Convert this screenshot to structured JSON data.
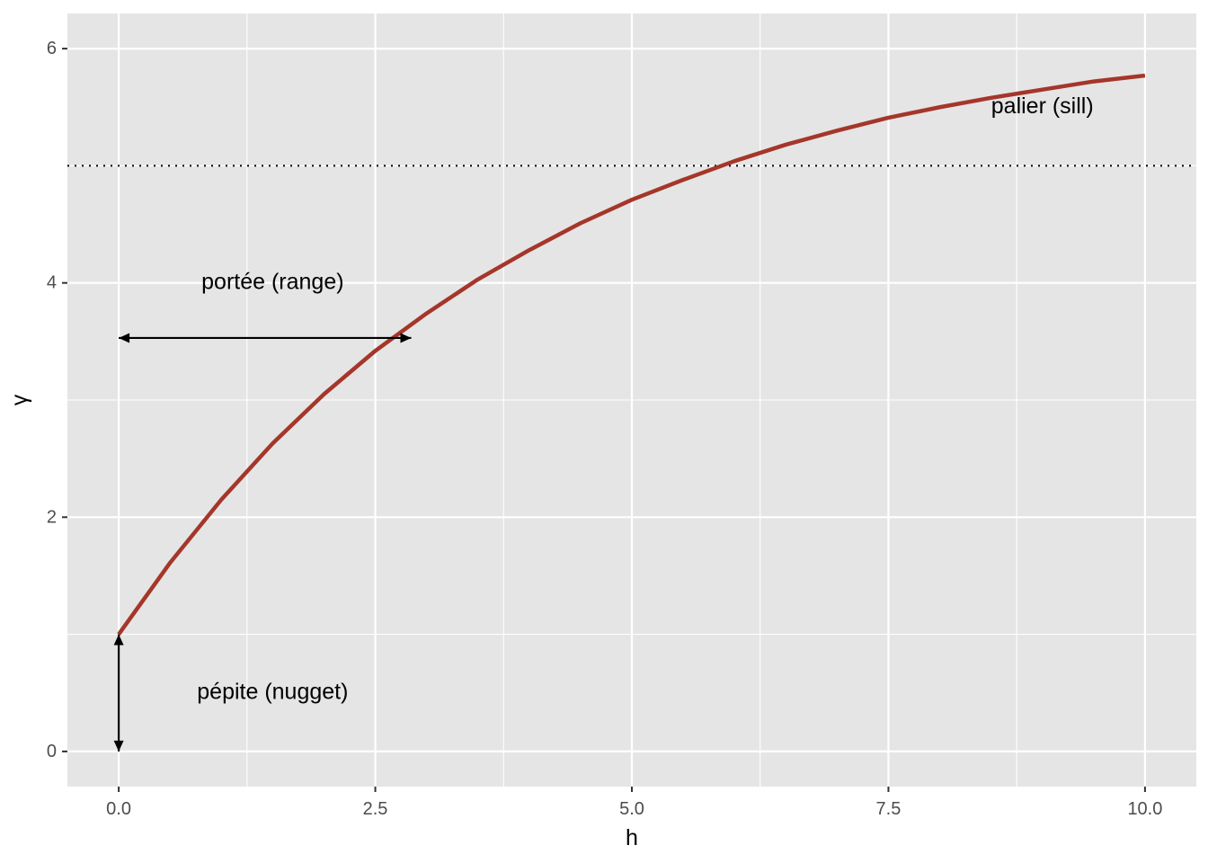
{
  "chart_data": {
    "type": "line",
    "title": "",
    "xlabel": "h",
    "ylabel": "γ",
    "xlim": [
      -0.5,
      10.5
    ],
    "ylim": [
      -0.3,
      6.3
    ],
    "x_ticks": [
      0,
      2.5,
      5,
      7.5,
      10
    ],
    "x_tick_labels": [
      "0.0",
      "2.5",
      "5.0",
      "7.5",
      "10.0"
    ],
    "y_ticks": [
      0,
      2,
      4,
      6
    ],
    "y_tick_labels": [
      "0",
      "2",
      "4",
      "6"
    ],
    "grid": true,
    "legend": "none",
    "series": [
      {
        "x": [
          0,
          0.5,
          1,
          1.5,
          2,
          2.5,
          3,
          3.5,
          4,
          4.5,
          5,
          5.5,
          6,
          6.5,
          7,
          7.5,
          8,
          8.5,
          9,
          9.5,
          10
        ],
        "values": [
          1.0,
          1.61,
          2.15,
          2.63,
          3.05,
          3.42,
          3.74,
          4.03,
          4.28,
          4.51,
          4.71,
          4.88,
          5.04,
          5.18,
          5.3,
          5.41,
          5.5,
          5.58,
          5.65,
          5.72,
          5.77
        ],
        "color": "#A5362A"
      }
    ],
    "reference_lines": [
      {
        "orientation": "horizontal",
        "y": 5,
        "style": "dotted"
      }
    ],
    "annotations": [
      {
        "text": "palier (sill)",
        "x": 9.0,
        "y": 5.5
      },
      {
        "text": "portée (range)",
        "x": 1.5,
        "y": 4.0
      },
      {
        "text": "pépite (nugget)",
        "x": 1.5,
        "y": 0.5
      }
    ],
    "arrows": [
      {
        "name": "range-arrow",
        "from": [
          0,
          3.53
        ],
        "to": [
          2.85,
          3.53
        ]
      },
      {
        "name": "nugget-arrow",
        "from": [
          0,
          0
        ],
        "to": [
          0,
          1
        ]
      }
    ],
    "colors": {
      "panel": "#E5E5E5",
      "grid": "#FFFFFF",
      "line": "#A5362A"
    }
  }
}
